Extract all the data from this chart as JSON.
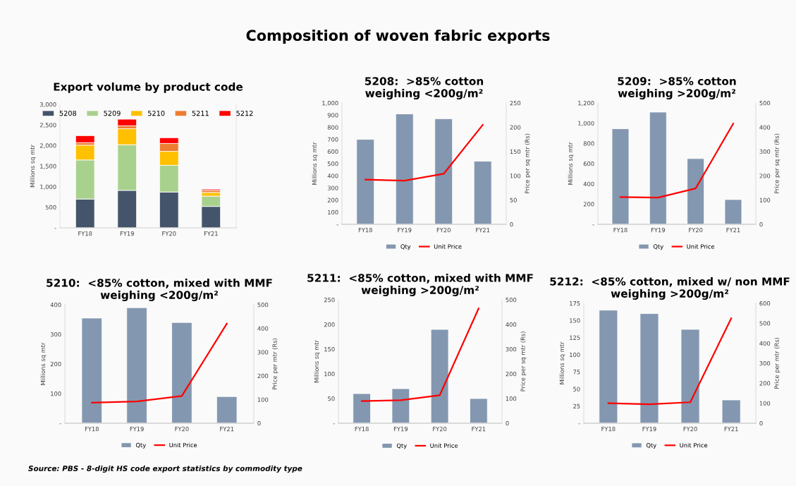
{
  "chart_data": [
    {
      "type": "bar",
      "title": "Export volume by product code",
      "stacked": true,
      "categories": [
        "FY18",
        "FY19",
        "FY20",
        "FY21"
      ],
      "ylabel": "Millions sq mtr",
      "ylim": [
        0,
        3000
      ],
      "yticks": [
        {
          "value": 0,
          "label": "-"
        },
        500,
        {
          "value": 1000,
          "label": "1,000"
        },
        {
          "value": 1500,
          "label": "1,500"
        },
        {
          "value": 2000,
          "label": "2,000"
        },
        {
          "value": 2500,
          "label": "2,500"
        },
        {
          "value": 3000,
          "label": "3,000"
        }
      ],
      "grid": false,
      "legend": "top",
      "annotations": [
        "Composition of woven fabric exports",
        "Source: PBS - 8-digit HS code export statistics by commodity type"
      ],
      "series": [
        {
          "name": "5208",
          "color": "#44546a",
          "values": [
            700,
            910,
            870,
            520
          ]
        },
        {
          "name": "5209",
          "color": "#a9d18e",
          "values": [
            950,
            1110,
            650,
            250
          ]
        },
        {
          "name": "5210",
          "color": "#ffc000",
          "values": [
            360,
            390,
            340,
            90
          ]
        },
        {
          "name": "5211",
          "color": "#ed7d31",
          "values": [
            60,
            70,
            190,
            50
          ]
        },
        {
          "name": "5212",
          "color": "#ff0000",
          "values": [
            170,
            160,
            140,
            30
          ]
        }
      ]
    },
    {
      "type": "bar",
      "title": "5208:  >85% cotton\nweighing <200g/m²",
      "categories": [
        "FY18",
        "FY19",
        "FY20",
        "FY21"
      ],
      "ylabel": "Millions sq mtr",
      "y2label": "Price per sq mtr (Rs)",
      "ylim": [
        0,
        1000
      ],
      "yticks": [
        {
          "value": 0,
          "label": "-"
        },
        100,
        200,
        300,
        400,
        500,
        600,
        700,
        800,
        900,
        {
          "value": 1000,
          "label": "1,000"
        }
      ],
      "y2lim": [
        0,
        250
      ],
      "y2ticks": [
        0,
        50,
        100,
        150,
        200,
        250
      ],
      "grid": false,
      "legend": "bottom",
      "series": [
        {
          "name": "Qty",
          "type": "bar",
          "color": "#8497b0",
          "values": [
            700,
            910,
            870,
            520
          ]
        },
        {
          "name": "Unit Price",
          "type": "line",
          "axis": "y2",
          "color": "#ff0000",
          "values": [
            92,
            90,
            104,
            205
          ]
        }
      ]
    },
    {
      "type": "bar",
      "title": "5209:  >85% cotton\nweighing >200g/m²",
      "categories": [
        "FY18",
        "FY19",
        "FY20",
        "FY21"
      ],
      "ylabel": "Millions sq mtr",
      "y2label": "Price per sq mtr (Rs)",
      "ylim": [
        0,
        1200
      ],
      "yticks": [
        {
          "value": 0,
          "label": "-"
        },
        200,
        400,
        600,
        800,
        {
          "value": 1000,
          "label": "1,000"
        },
        {
          "value": 1200,
          "label": "1,200"
        }
      ],
      "y2lim": [
        0,
        500
      ],
      "y2ticks": [
        0,
        100,
        200,
        300,
        400,
        500
      ],
      "grid": false,
      "legend": "bottom",
      "series": [
        {
          "name": "Qty",
          "type": "bar",
          "color": "#8497b0",
          "values": [
            945,
            1110,
            650,
            245
          ]
        },
        {
          "name": "Unit Price",
          "type": "line",
          "axis": "y2",
          "color": "#ff0000",
          "values": [
            112,
            110,
            148,
            415
          ]
        }
      ]
    },
    {
      "type": "bar",
      "title": "5210:  <85% cotton, mixed with MMF\nweighing <200g/m²",
      "categories": [
        "FY18",
        "FY19",
        "FY20",
        "FY21"
      ],
      "ylabel": "Millions sq mtr",
      "y2label": "Price per mtr (Rs)",
      "ylim": [
        0,
        400
      ],
      "yticks": [
        {
          "value": 0,
          "label": "-"
        },
        100,
        200,
        300,
        400
      ],
      "y2lim": [
        0,
        500
      ],
      "y2ticks": [
        0,
        100,
        200,
        300,
        400,
        500
      ],
      "grid": false,
      "legend": "bottom",
      "series": [
        {
          "name": "Qty",
          "type": "bar",
          "color": "#8497b0",
          "values": [
            355,
            390,
            340,
            90
          ]
        },
        {
          "name": "Unit Price",
          "type": "line",
          "axis": "y2",
          "color": "#ff0000",
          "values": [
            87,
            92,
            115,
            420
          ]
        }
      ]
    },
    {
      "type": "bar",
      "title": "5211:  <85% cotton, mixed with MMF\nweighing >200g/m²",
      "categories": [
        "FY18",
        "FY19",
        "FY20",
        "FY21"
      ],
      "ylabel": "Millions sq mtr",
      "y2label": "Price per sq mtr (Rs)",
      "ylim": [
        0,
        250
      ],
      "yticks": [
        {
          "value": 0,
          "label": "-"
        },
        50,
        100,
        150,
        200,
        250
      ],
      "y2lim": [
        0,
        500
      ],
      "y2ticks": [
        0,
        100,
        200,
        300,
        400,
        500
      ],
      "grid": false,
      "legend": "bottom",
      "series": [
        {
          "name": "Qty",
          "type": "bar",
          "color": "#8497b0",
          "values": [
            60,
            70,
            190,
            50
          ]
        },
        {
          "name": "Unit Price",
          "type": "line",
          "axis": "y2",
          "color": "#ff0000",
          "values": [
            90,
            93,
            113,
            465
          ]
        }
      ]
    },
    {
      "type": "bar",
      "title": "5212:  <85% cotton, mixed w/ non MMF\nweighing >200g/m²",
      "categories": [
        "FY18",
        "FY19",
        "FY20",
        "FY21"
      ],
      "ylabel": "Millions sq mtr",
      "y2label": "Price per mtr (Rs)",
      "ylim": [
        0,
        175
      ],
      "yticks": [
        {
          "value": 0,
          "label": "-"
        },
        25,
        50,
        75,
        100,
        125,
        150,
        175
      ],
      "y2lim": [
        0,
        600
      ],
      "y2ticks": [
        0,
        100,
        200,
        300,
        400,
        500,
        600
      ],
      "grid": false,
      "legend": "bottom",
      "series": [
        {
          "name": "Qty",
          "type": "bar",
          "color": "#8497b0",
          "values": [
            165,
            160,
            137,
            34
          ]
        },
        {
          "name": "Unit Price",
          "type": "line",
          "axis": "y2",
          "color": "#ff0000",
          "values": [
            100,
            95,
            105,
            525
          ]
        }
      ]
    }
  ]
}
